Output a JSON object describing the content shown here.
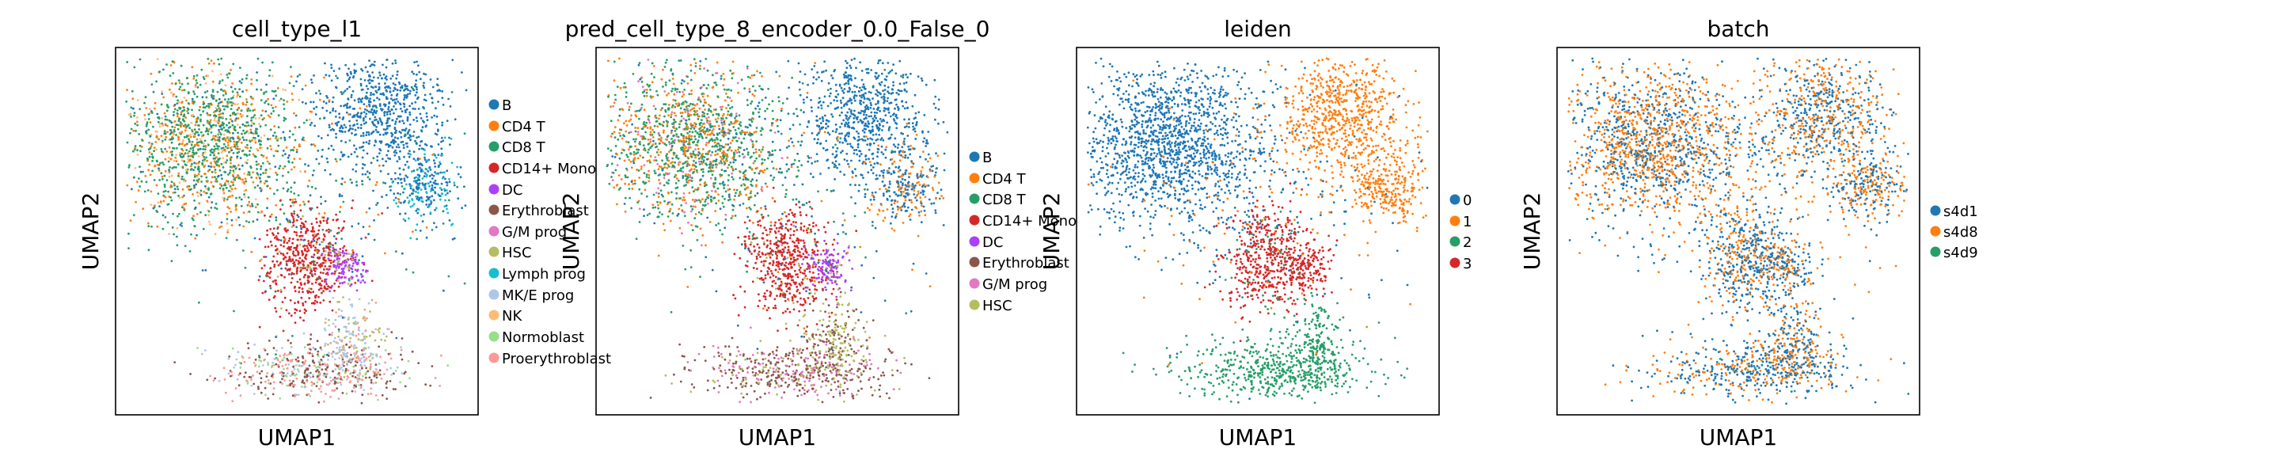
{
  "chart_data": [
    {
      "type": "scatter",
      "title": "cell_type_l1",
      "xlabel": "UMAP1",
      "ylabel": "UMAP2",
      "legend_position": "right",
      "series": [
        {
          "name": "B",
          "color": "#1f77b4"
        },
        {
          "name": "CD4 T",
          "color": "#ff7f0e"
        },
        {
          "name": "CD8 T",
          "color": "#279e68"
        },
        {
          "name": "CD14+ Mono",
          "color": "#d62728"
        },
        {
          "name": "DC",
          "color": "#aa40fc"
        },
        {
          "name": "Erythroblast",
          "color": "#8c564b"
        },
        {
          "name": "G/M prog",
          "color": "#e377c2"
        },
        {
          "name": "HSC",
          "color": "#b5bd61"
        },
        {
          "name": "Lymph prog",
          "color": "#17becf"
        },
        {
          "name": "MK/E prog",
          "color": "#aec7e8"
        },
        {
          "name": "NK",
          "color": "#ffbb78"
        },
        {
          "name": "Normoblast",
          "color": "#98df8a"
        },
        {
          "name": "Proerythroblast",
          "color": "#ff9896"
        }
      ]
    },
    {
      "type": "scatter",
      "title": "pred_cell_type_8_encoder_0.0_False_0",
      "xlabel": "UMAP1",
      "ylabel": "UMAP2",
      "legend_position": "right",
      "series": [
        {
          "name": "B",
          "color": "#1f77b4"
        },
        {
          "name": "CD4 T",
          "color": "#ff7f0e"
        },
        {
          "name": "CD8 T",
          "color": "#279e68"
        },
        {
          "name": "CD14+ Mono",
          "color": "#d62728"
        },
        {
          "name": "DC",
          "color": "#aa40fc"
        },
        {
          "name": "Erythroblast",
          "color": "#8c564b"
        },
        {
          "name": "G/M prog",
          "color": "#e377c2"
        },
        {
          "name": "HSC",
          "color": "#b5bd61"
        }
      ]
    },
    {
      "type": "scatter",
      "title": "leiden",
      "xlabel": "UMAP1",
      "ylabel": "UMAP2",
      "legend_position": "right",
      "series": [
        {
          "name": "0",
          "color": "#1f77b4"
        },
        {
          "name": "1",
          "color": "#ff7f0e"
        },
        {
          "name": "2",
          "color": "#279e68"
        },
        {
          "name": "3",
          "color": "#d62728"
        }
      ]
    },
    {
      "type": "scatter",
      "title": "batch",
      "xlabel": "UMAP1",
      "ylabel": "UMAP2",
      "legend_position": "right",
      "series": [
        {
          "name": "s4d1",
          "color": "#1f77b4"
        },
        {
          "name": "s4d8",
          "color": "#ff7f0e"
        },
        {
          "name": "s4d9",
          "color": "#279e68"
        }
      ]
    }
  ]
}
